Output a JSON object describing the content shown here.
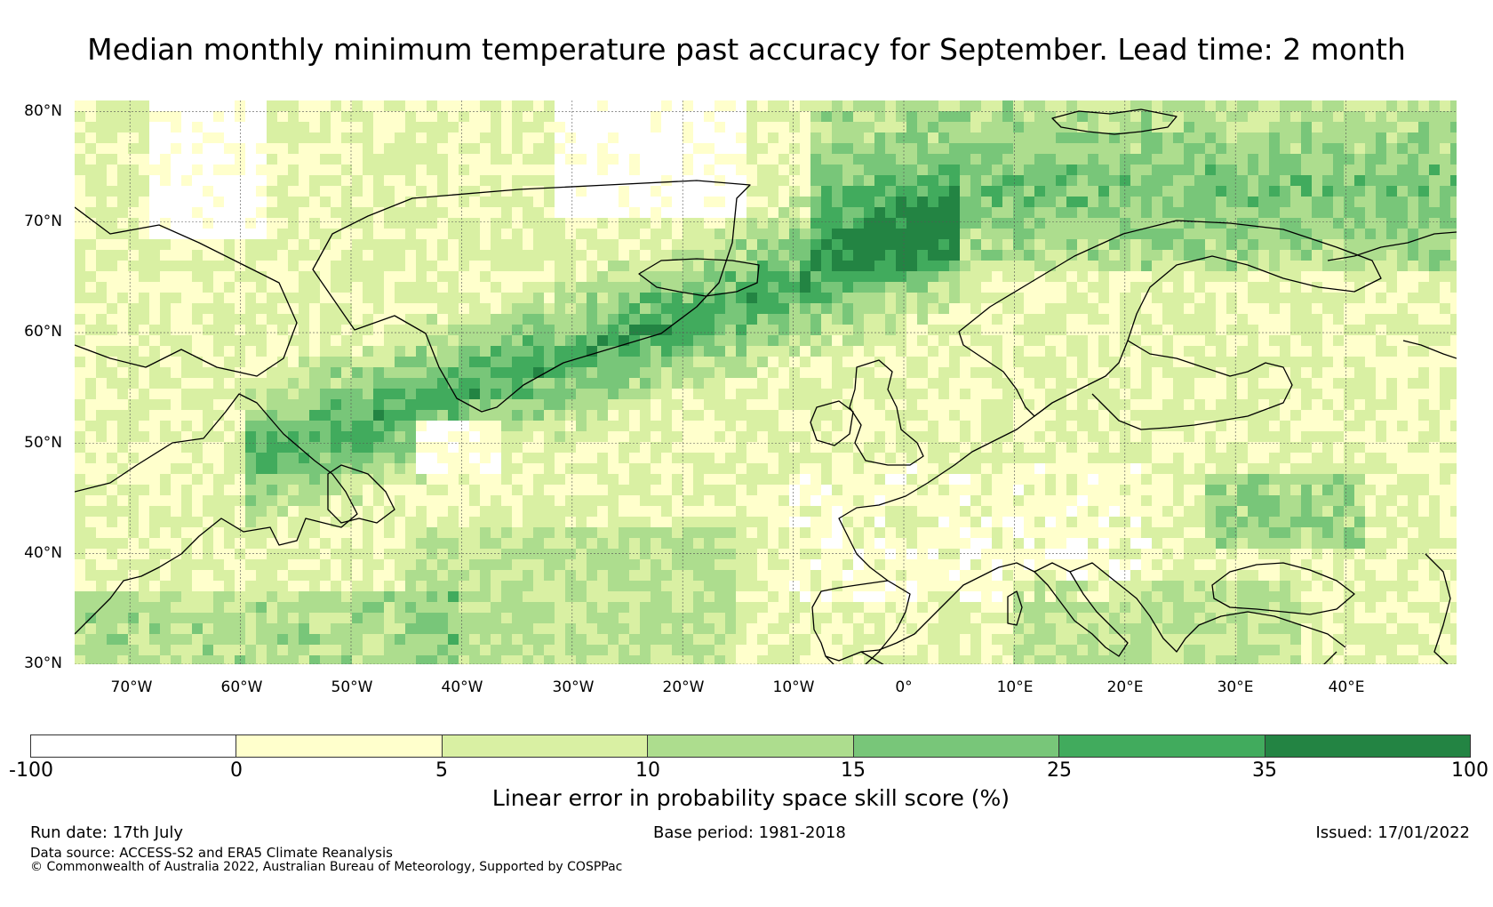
{
  "title": "Median monthly minimum temperature past accuracy for September. Lead time: 2 month",
  "map": {
    "lat_labels": [
      "80°N",
      "70°N",
      "60°N",
      "50°N",
      "40°N",
      "30°N"
    ],
    "lon_labels": [
      "70°W",
      "60°W",
      "50°W",
      "40°W",
      "30°W",
      "20°W",
      "10°W",
      "0°",
      "10°E",
      "20°E",
      "30°E",
      "40°E"
    ],
    "extent": {
      "lon_min": -75,
      "lon_max": 50,
      "lat_min": 30,
      "lat_max": 81
    }
  },
  "legend": {
    "ticks": [
      "-100",
      "0",
      "5",
      "10",
      "15",
      "25",
      "35",
      "100"
    ],
    "colors": [
      "#ffffff",
      "#ffffcc",
      "#d9f0a3",
      "#addd8e",
      "#78c679",
      "#41ab5d",
      "#238443"
    ],
    "label": "Linear error in probability space skill score (%)"
  },
  "footer": {
    "run_date": "Run date: 17th July",
    "base_period": "Base period: 1981-2018",
    "issued": "Issued: 17/01/2022",
    "data_source": "Data source: ACCESS-S2 and ERA5 Climate Reanalysis",
    "copyright": "© Commonwealth of Australia 2022, Australian Bureau of Meteorology, Supported by COSPPac"
  }
}
